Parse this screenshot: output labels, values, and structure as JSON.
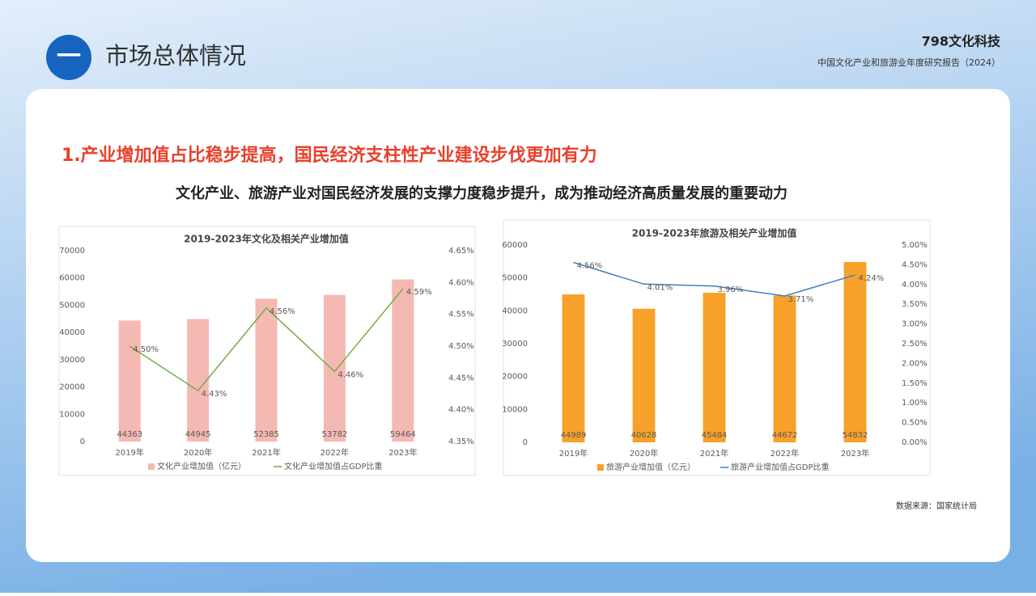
{
  "header": {
    "badge": "一",
    "title": "市场总体情况",
    "logo": "798文化科技",
    "report": "中国文化产业和旅游业年度研究报告（2024）"
  },
  "headline": "1.产业增加值占比稳步提高，国民经济支柱性产业建设步伐更加有力",
  "subheadline": "文化产业、旅游产业对国民经济发展的支撑力度稳步提升，成为推动经济高质量发展的重要动力",
  "source": "数据来源：国家统计局",
  "chart_data": [
    {
      "type": "combo",
      "title": "2019-2023年文化及相关产业增加值",
      "categories": [
        "2019年",
        "2020年",
        "2021年",
        "2022年",
        "2023年"
      ],
      "series": [
        {
          "name": "文化产业增加值（亿元）",
          "color": "#f4b9b2",
          "values": [
            44363,
            44945,
            52385,
            53782,
            59464
          ]
        },
        {
          "name": "文化产业增加值占GDP比重",
          "color": "#70ad47",
          "axis": "y2",
          "values": [
            4.5,
            4.43,
            4.56,
            4.46,
            4.59
          ],
          "value_labels": [
            "4.50%",
            "4.43%",
            "4.56%",
            "4.46%",
            "4.59%"
          ]
        }
      ],
      "ylim": [
        0,
        70000
      ],
      "yticks": [
        0,
        10000,
        20000,
        30000,
        40000,
        50000,
        60000,
        70000
      ],
      "y2lim": [
        4.35,
        4.65
      ],
      "y2ticks": [
        {
          "value": 4.35,
          "label": "4.35%"
        },
        {
          "value": 4.4,
          "label": "4.40%"
        },
        {
          "value": 4.45,
          "label": "4.45%"
        },
        {
          "value": 4.5,
          "label": "4.50%"
        },
        {
          "value": 4.55,
          "label": "4.55%"
        },
        {
          "value": 4.6,
          "label": "4.60%"
        },
        {
          "value": 4.65,
          "label": "4.65%"
        }
      ]
    },
    {
      "type": "combo",
      "title": "2019-2023年旅游及相关产业增加值",
      "categories": [
        "2019年",
        "2020年",
        "2021年",
        "2022年",
        "2023年"
      ],
      "series": [
        {
          "name": "旅游产业增加值（亿元）",
          "color": "#f7a12a",
          "values": [
            44989,
            40628,
            45484,
            44672,
            54832
          ]
        },
        {
          "name": "旅游产业增加值占GDP比重",
          "color": "#3b7fc1",
          "axis": "y2",
          "values": [
            4.56,
            4.01,
            3.96,
            3.71,
            4.24
          ],
          "value_labels": [
            "4.56%",
            "4.01%",
            "3.96%",
            "3.71%",
            "4.24%"
          ]
        }
      ],
      "ylim": [
        0,
        60000
      ],
      "yticks": [
        0,
        10000,
        20000,
        30000,
        40000,
        50000,
        60000
      ],
      "y2lim": [
        0,
        5
      ],
      "y2ticks": [
        {
          "value": 0,
          "label": "0.00%"
        },
        {
          "value": 0.5,
          "label": "0.50%"
        },
        {
          "value": 1,
          "label": "1.00%"
        },
        {
          "value": 1.5,
          "label": "1.50%"
        },
        {
          "value": 2,
          "label": "2.00%"
        },
        {
          "value": 2.5,
          "label": "2.50%"
        },
        {
          "value": 3,
          "label": "3.00%"
        },
        {
          "value": 3.5,
          "label": "3.50%"
        },
        {
          "value": 4,
          "label": "4.00%"
        },
        {
          "value": 4.5,
          "label": "4.50%"
        },
        {
          "value": 5,
          "label": "5.00%"
        }
      ]
    }
  ]
}
